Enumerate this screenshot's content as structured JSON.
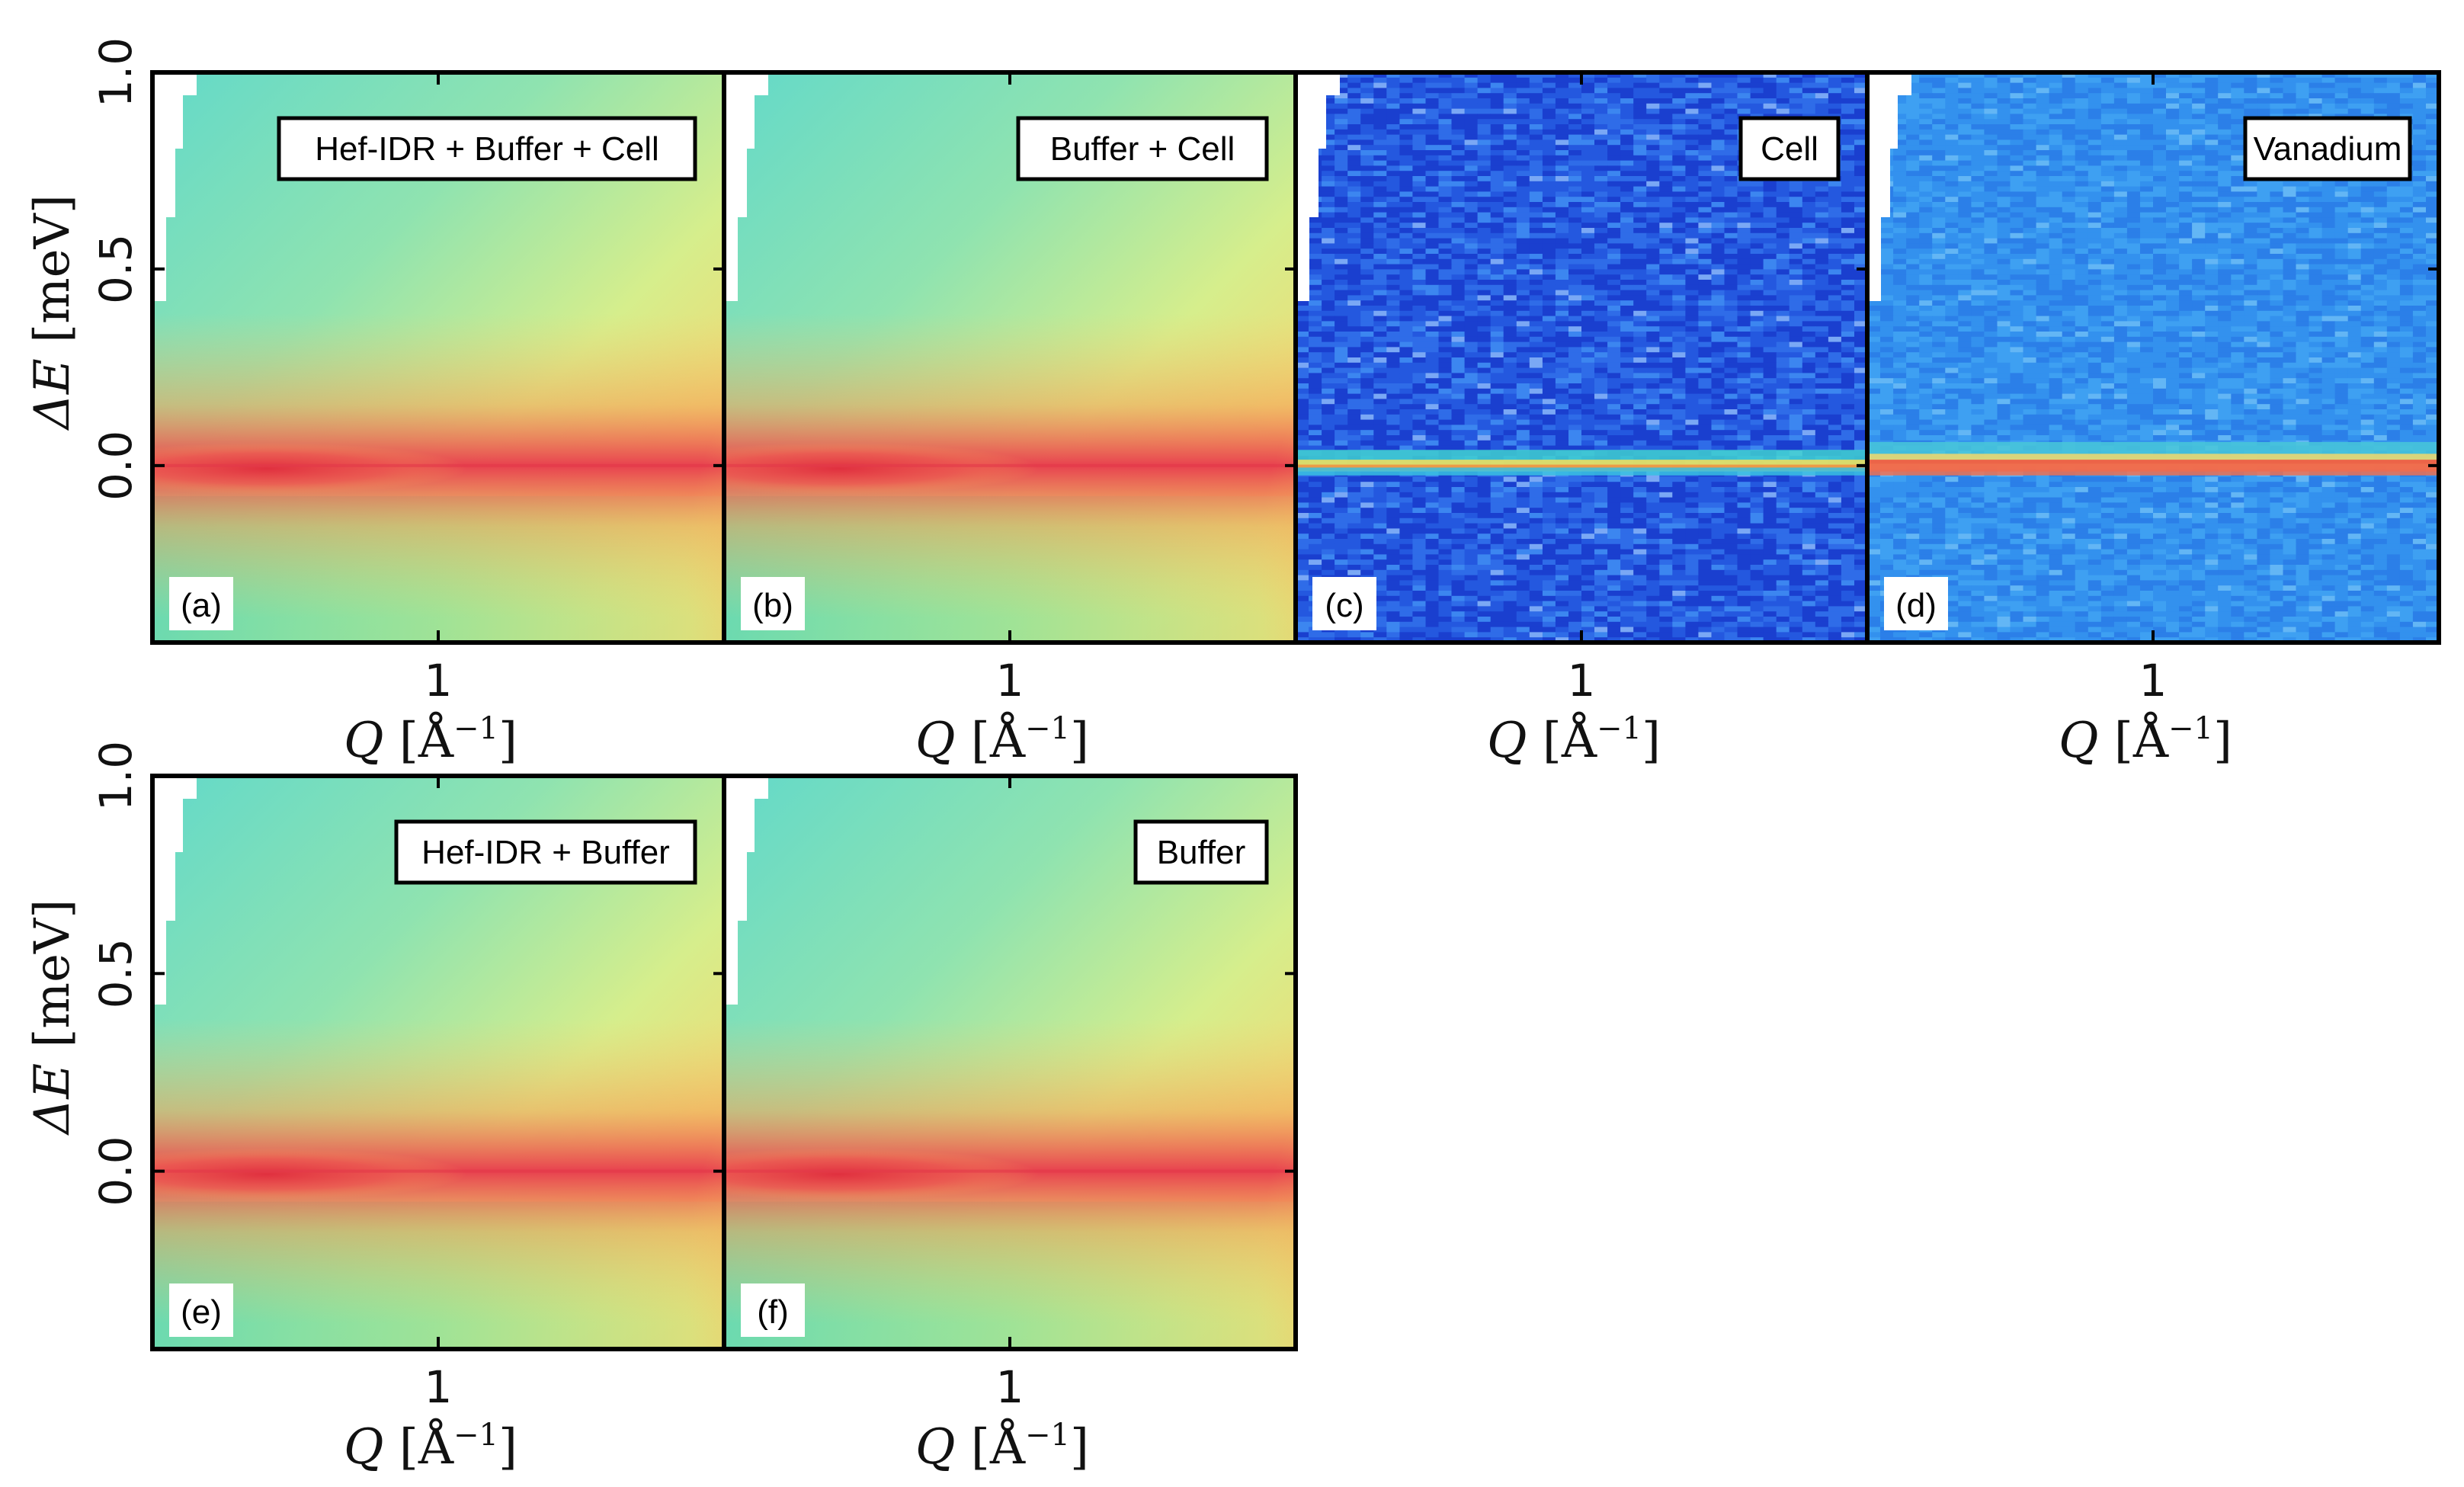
{
  "chart_data": [
    {
      "type": "heatmap",
      "panel": "(a)",
      "label": "Hef-IDR + Buffer + Cell",
      "xlabel": {
        "var": "Q",
        "unit": "[Å",
        "exp": "−1",
        "close": "]"
      },
      "ylabel": {
        "var": "ΔE",
        "unit": "[meV]"
      },
      "xticks": [
        "1"
      ],
      "yticks": [
        "1.0",
        "0.5",
        "0.0"
      ],
      "xlim": [
        0.45,
        1.55
      ],
      "ylim": [
        -0.45,
        1.0
      ],
      "colormap": "broad",
      "show_yaxis": true
    },
    {
      "type": "heatmap",
      "panel": "(b)",
      "label": "Buffer + Cell",
      "xlabel": {
        "var": "Q",
        "unit": "[Å",
        "exp": "−1",
        "close": "]"
      },
      "xticks": [
        "1"
      ],
      "xlim": [
        0.45,
        1.55
      ],
      "ylim": [
        -0.45,
        1.0
      ],
      "colormap": "broad",
      "show_yaxis": false
    },
    {
      "type": "heatmap",
      "panel": "(c)",
      "label": "Cell",
      "xlabel": {
        "var": "Q",
        "unit": "[Å",
        "exp": "−1",
        "close": "]"
      },
      "xticks": [
        "1"
      ],
      "xlim": [
        0.45,
        1.55
      ],
      "ylim": [
        -0.45,
        1.0
      ],
      "colormap": "noisy-dark",
      "show_yaxis": false
    },
    {
      "type": "heatmap",
      "panel": "(d)",
      "label": "Vanadium",
      "xlabel": {
        "var": "Q",
        "unit": "[Å",
        "exp": "−1",
        "close": "]"
      },
      "xticks": [
        "1"
      ],
      "xlim": [
        0.45,
        1.55
      ],
      "ylim": [
        -0.45,
        1.0
      ],
      "colormap": "noisy-elastic",
      "show_yaxis": false
    },
    {
      "type": "heatmap",
      "panel": "(e)",
      "label": "Hef-IDR + Buffer",
      "xlabel": {
        "var": "Q",
        "unit": "[Å",
        "exp": "−1",
        "close": "]"
      },
      "ylabel": {
        "var": "ΔE",
        "unit": "[meV]"
      },
      "xticks": [
        "1"
      ],
      "yticks": [
        "1.0",
        "0.5",
        "0.0"
      ],
      "xlim": [
        0.45,
        1.55
      ],
      "ylim": [
        -0.45,
        1.0
      ],
      "colormap": "broad",
      "show_yaxis": true
    },
    {
      "type": "heatmap",
      "panel": "(f)",
      "label": "Buffer",
      "xlabel": {
        "var": "Q",
        "unit": "[Å",
        "exp": "−1",
        "close": "]"
      },
      "xticks": [
        "1"
      ],
      "xlim": [
        0.45,
        1.55
      ],
      "ylim": [
        -0.45,
        1.0
      ],
      "colormap": "broad",
      "show_yaxis": false
    }
  ]
}
